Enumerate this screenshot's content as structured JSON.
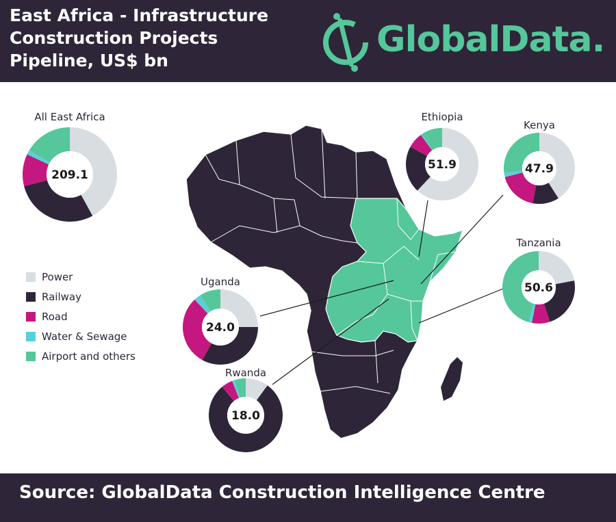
{
  "header": {
    "title": "East Africa - Infrastructure\nConstruction Projects\nPipeline, US$ bn",
    "logo_text": "GlobalData."
  },
  "footer": {
    "source": "Source: GlobalData Construction Intelligence Centre"
  },
  "colors": {
    "header_bg": "#2e2638",
    "Power": "#d8dde1",
    "Railway": "#2e2638",
    "Road": "#c4177f",
    "Water & Sewage": "#5bcfd9",
    "Airport and others": "#55c79a",
    "map_highlight": "#55c79a",
    "map_base": "#2e2638"
  },
  "legend": {
    "items": [
      "Power",
      "Railway",
      "Road",
      "Water & Sewage",
      "Airport and others"
    ]
  },
  "chart_data": [
    {
      "type": "pie",
      "title": "All East Africa",
      "total_label": "209.1",
      "categories": [
        "Power",
        "Railway",
        "Road",
        "Water & Sewage",
        "Airport and others"
      ],
      "values": [
        42,
        29,
        11,
        1.5,
        16.5
      ]
    },
    {
      "type": "pie",
      "title": "Ethiopia",
      "total_label": "51.9",
      "categories": [
        "Power",
        "Railway",
        "Road",
        "Water & Sewage",
        "Airport and others"
      ],
      "values": [
        62,
        21,
        7,
        0.5,
        9.5
      ]
    },
    {
      "type": "pie",
      "title": "Kenya",
      "total_label": "47.9",
      "categories": [
        "Power",
        "Railway",
        "Road",
        "Water & Sewage",
        "Airport and others"
      ],
      "values": [
        41,
        12,
        18,
        2,
        27
      ]
    },
    {
      "type": "pie",
      "title": "Tanzania",
      "total_label": "50.6",
      "categories": [
        "Power",
        "Railway",
        "Road",
        "Water & Sewage",
        "Airport and others"
      ],
      "values": [
        22,
        23,
        8,
        1.5,
        45.5
      ]
    },
    {
      "type": "pie",
      "title": "Uganda",
      "total_label": "24.0",
      "categories": [
        "Power",
        "Railway",
        "Road",
        "Water & Sewage",
        "Airport and others"
      ],
      "values": [
        25,
        33,
        30,
        3,
        9
      ]
    },
    {
      "type": "pie",
      "title": "Rwanda",
      "total_label": "18.0",
      "categories": [
        "Power",
        "Railway",
        "Road",
        "Water & Sewage",
        "Airport and others"
      ],
      "values": [
        10,
        79,
        5,
        1,
        5
      ]
    }
  ]
}
